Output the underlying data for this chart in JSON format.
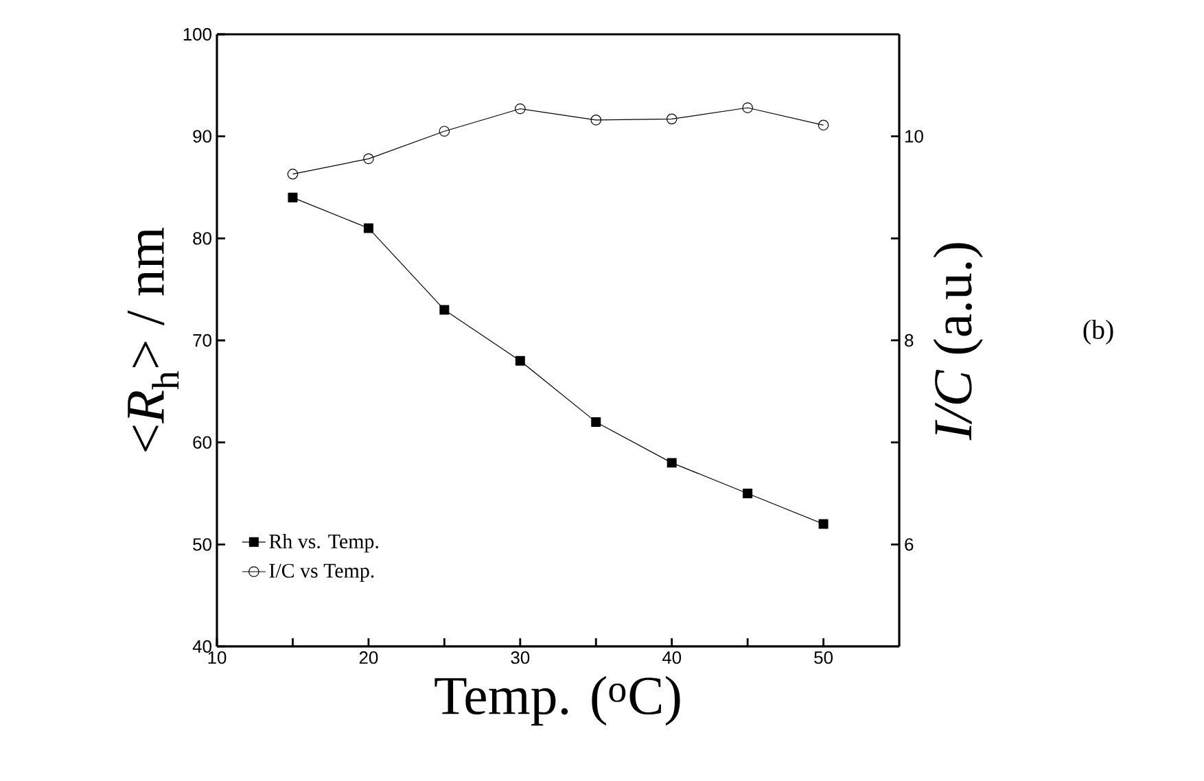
{
  "chart_data": {
    "type": "line",
    "xlabel": "Temp. ($^{o}$C)",
    "ylabel": "<*R*$_{h}$> / nm",
    "y2label": "*I/C* (a.u.)",
    "x": [
      15,
      20,
      25,
      30,
      35,
      40,
      45,
      50
    ],
    "series": [
      {
        "name": "Rh vs. Temp.",
        "color": "#000000",
        "marker": "square",
        "values": [
          84,
          81,
          73,
          68,
          62,
          58,
          55,
          52
        ]
      },
      {
        "name": "I/C vs Temp.",
        "color": "#000000",
        "marker": "circle",
        "axis": "y2",
        "values": [
          9.63,
          9.78,
          10.05,
          10.27,
          10.16,
          10.17,
          10.28,
          10.11
        ]
      }
    ],
    "xlim": [
      10,
      55
    ],
    "xticks": [
      10,
      {
        "value": 15,
        "label": null
      },
      20,
      {
        "value": 25,
        "label": null
      },
      30,
      {
        "value": 35,
        "label": null
      },
      40,
      {
        "value": 45,
        "label": null
      },
      50
    ],
    "ylim": [
      40,
      100
    ],
    "yticks": [
      40,
      50,
      60,
      70,
      80,
      90,
      100
    ],
    "y2lim": [
      5,
      11
    ],
    "y2ticks": [
      6,
      {
        "value": 7,
        "label": null
      },
      8,
      {
        "value": 9,
        "label": null
      },
      10
    ],
    "legend": "bottom left",
    "grid": false,
    "line_style": "solid",
    "annotations": [
      "(b)"
    ]
  }
}
